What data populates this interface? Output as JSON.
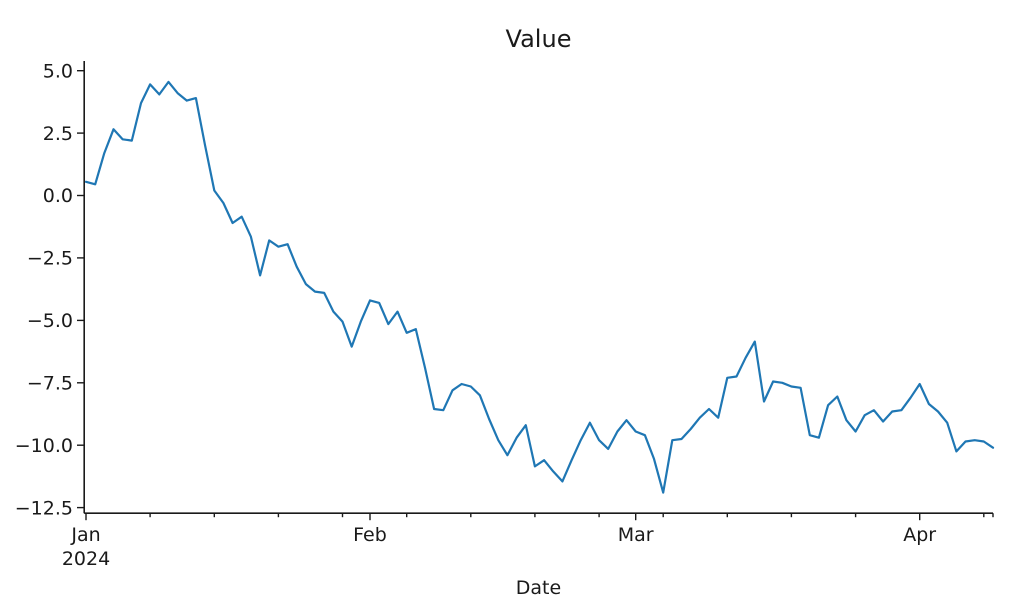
{
  "chart_data": {
    "type": "line",
    "title": "Value",
    "xlabel": "Date",
    "ylabel": "",
    "legend": "none",
    "grid": "off",
    "spines": [
      "left",
      "bottom"
    ],
    "line_color": "#1f77b4",
    "line_width": 2.2,
    "x_dates": {
      "start": "2024-01-01",
      "end": "2024-04-09",
      "freq": "daily"
    },
    "xlim_days": [
      0,
      99
    ],
    "ylim": [
      -12.72,
      5.37
    ],
    "x_ticks": [
      {
        "day": 0,
        "label": "Jan",
        "sublabel": "2024"
      },
      {
        "day": 31,
        "label": "Feb",
        "sublabel": ""
      },
      {
        "day": 60,
        "label": "Mar",
        "sublabel": ""
      },
      {
        "day": 91,
        "label": "Apr",
        "sublabel": ""
      }
    ],
    "minor_tick_days": [
      7,
      14,
      21,
      28,
      35,
      42,
      49,
      56,
      63,
      70,
      77,
      84,
      98,
      99
    ],
    "y_ticks": [
      {
        "v": 5.0,
        "label": "5.0"
      },
      {
        "v": 2.5,
        "label": "2.5"
      },
      {
        "v": 0.0,
        "label": "0.0"
      },
      {
        "v": -2.5,
        "label": "−2.5"
      },
      {
        "v": -5.0,
        "label": "−5.0"
      },
      {
        "v": -7.5,
        "label": "−7.5"
      },
      {
        "v": -10.0,
        "label": "−10.0"
      },
      {
        "v": -12.5,
        "label": "−12.5"
      }
    ],
    "values": [
      0.55,
      0.45,
      1.7,
      2.65,
      2.25,
      2.2,
      3.7,
      4.45,
      4.05,
      4.55,
      4.1,
      3.8,
      3.9,
      2.0,
      0.2,
      -0.3,
      -1.1,
      -0.85,
      -1.65,
      -3.2,
      -1.8,
      -2.05,
      -1.95,
      -2.85,
      -3.55,
      -3.85,
      -3.9,
      -4.65,
      -5.05,
      -6.05,
      -5.05,
      -4.2,
      -4.3,
      -5.15,
      -4.65,
      -5.5,
      -5.35,
      -6.9,
      -8.55,
      -8.6,
      -7.8,
      -7.55,
      -7.65,
      -8.0,
      -8.95,
      -9.8,
      -10.4,
      -9.7,
      -9.2,
      -10.85,
      -10.6,
      -11.05,
      -11.45,
      -10.6,
      -9.8,
      -9.1,
      -9.8,
      -10.15,
      -9.45,
      -9.0,
      -9.45,
      -9.6,
      -10.55,
      -11.9,
      -9.8,
      -9.75,
      -9.35,
      -8.9,
      -8.55,
      -8.9,
      -7.3,
      -7.25,
      -6.5,
      -5.85,
      -8.25,
      -7.45,
      -7.5,
      -7.65,
      -7.7,
      -9.6,
      -9.7,
      -8.4,
      -8.05,
      -9.0,
      -9.45,
      -8.8,
      -8.6,
      -9.05,
      -8.65,
      -8.6,
      -8.1,
      -7.55,
      -8.35,
      -8.65,
      -9.1,
      -10.25,
      -9.85,
      -9.8,
      -9.85,
      -10.1
    ]
  }
}
